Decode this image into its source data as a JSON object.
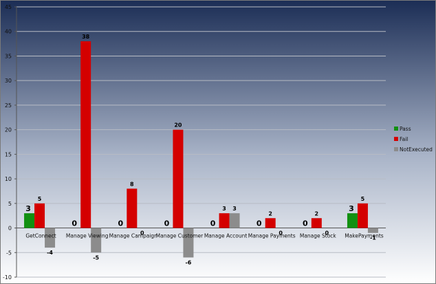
{
  "chart_data": {
    "type": "bar",
    "categories": [
      "GetConnect",
      "ManageViewing",
      "ManageCampaign",
      "ManageCustomer",
      "ManageAccount",
      "ManagePayments",
      "ManageStock",
      "MakePayments"
    ],
    "category_labels": [
      "GetConnect",
      "Manage Viewing",
      "Manage Campaign",
      "Manage Customer",
      "Manage Account",
      "Manage Payments",
      "Manage Stock",
      "MakePayments"
    ],
    "series": [
      {
        "name": "Pass",
        "color": "#119011",
        "values": [
          3,
          0,
          0,
          0,
          0,
          0,
          0,
          3
        ],
        "labels": [
          "3",
          "0",
          "0",
          "0",
          "0",
          "0",
          "0",
          "3"
        ]
      },
      {
        "name": "Fail",
        "color": "#d40000",
        "values": [
          5,
          38,
          8,
          20,
          3,
          2,
          2,
          5
        ],
        "labels": [
          "5",
          "38",
          "8",
          "20",
          "3",
          "2",
          "2",
          "5"
        ]
      },
      {
        "name": "NotExecuted",
        "color": "#8c8c8c",
        "values": [
          -4,
          -5,
          0,
          -6,
          3,
          0,
          0,
          -1
        ],
        "labels": [
          "-4",
          "-5",
          "0",
          "-6",
          "3",
          "0",
          "0",
          "-1"
        ]
      }
    ],
    "ylim": [
      -10,
      45
    ],
    "yticks": [
      "-10",
      "-5",
      "0",
      "5",
      "10",
      "15",
      "20",
      "25",
      "30",
      "35",
      "40",
      "45"
    ],
    "grid": true,
    "legend_position": "right",
    "background": {
      "top": "#1b2d55",
      "bottom": "#ffffff"
    }
  }
}
